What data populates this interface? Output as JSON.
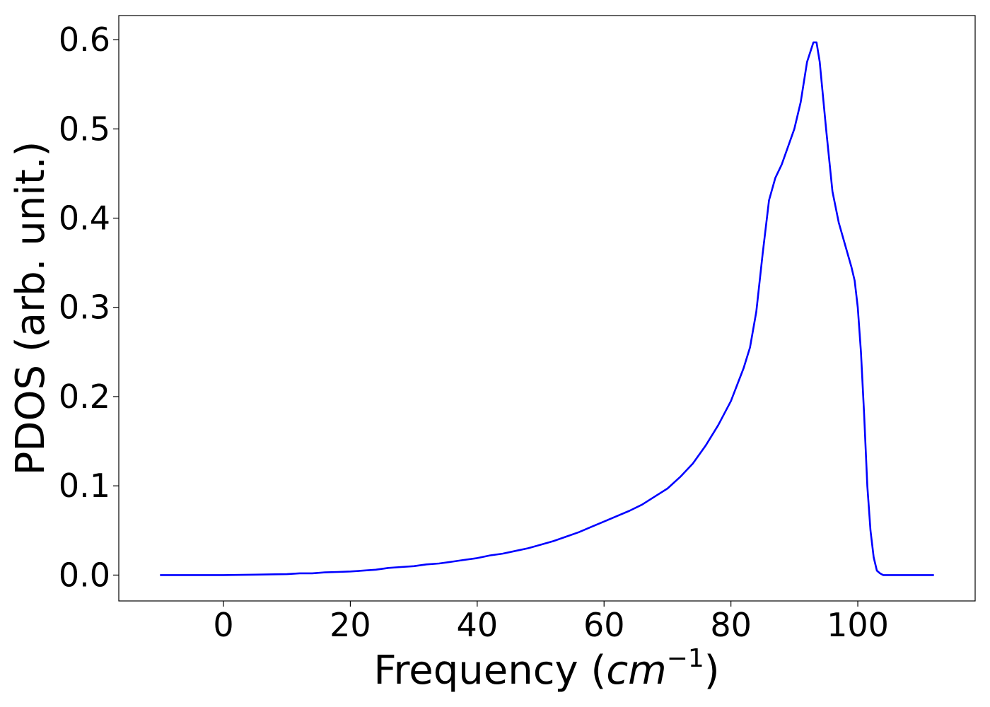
{
  "chart_data": {
    "type": "line",
    "title": "",
    "xlabel": "Frequency (",
    "xlabel_math": "cm",
    "xlabel_sup": "−1",
    "xlabel_end": ")",
    "ylabel": "PDOS (arb. unit.)",
    "xlim": [
      -16.5,
      118.5
    ],
    "ylim": [
      -0.029,
      0.627
    ],
    "xticks": [
      0,
      20,
      40,
      60,
      80,
      100
    ],
    "xtick_labels": [
      "0",
      "20",
      "40",
      "60",
      "80",
      "100"
    ],
    "yticks": [
      0.0,
      0.1,
      0.2,
      0.3,
      0.4,
      0.5,
      0.6
    ],
    "ytick_labels": [
      "0.0",
      "0.1",
      "0.2",
      "0.3",
      "0.4",
      "0.5",
      "0.6"
    ],
    "grid": false,
    "legend": "none",
    "series": [
      {
        "color": "#0000ff",
        "x": [
          -10,
          0,
          5,
          10,
          12,
          14,
          16,
          18,
          20,
          22,
          24,
          26,
          28,
          30,
          32,
          34,
          36,
          38,
          40,
          42,
          44,
          46,
          48,
          50,
          52,
          54,
          56,
          58,
          60,
          62,
          64,
          66,
          68,
          70,
          72,
          74,
          76,
          78,
          80,
          82,
          83,
          84,
          85,
          86,
          87,
          88,
          89,
          90,
          91,
          92,
          93,
          93.5,
          94,
          95,
          96,
          97,
          98,
          99,
          99.5,
          100,
          100.5,
          101,
          101.5,
          102,
          102.5,
          103,
          103.5,
          104,
          105,
          106,
          112
        ],
        "y": [
          0.0,
          0.0,
          0.0005,
          0.001,
          0.002,
          0.002,
          0.003,
          0.0035,
          0.004,
          0.005,
          0.006,
          0.008,
          0.009,
          0.01,
          0.012,
          0.013,
          0.015,
          0.017,
          0.019,
          0.022,
          0.024,
          0.027,
          0.03,
          0.034,
          0.038,
          0.043,
          0.048,
          0.054,
          0.06,
          0.066,
          0.072,
          0.079,
          0.088,
          0.097,
          0.11,
          0.125,
          0.145,
          0.168,
          0.195,
          0.232,
          0.255,
          0.295,
          0.36,
          0.42,
          0.445,
          0.46,
          0.48,
          0.5,
          0.53,
          0.575,
          0.597,
          0.597,
          0.575,
          0.5,
          0.43,
          0.395,
          0.37,
          0.345,
          0.33,
          0.3,
          0.25,
          0.18,
          0.1,
          0.05,
          0.02,
          0.005,
          0.002,
          0.0,
          0.0,
          0.0,
          0.0
        ]
      }
    ]
  }
}
